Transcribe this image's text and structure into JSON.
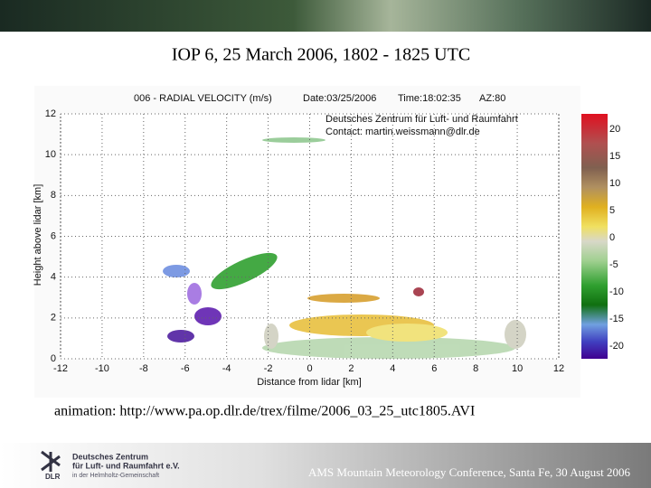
{
  "slide": {
    "title": "IOP 6, 25 March 2006, 1802 - 1825 UTC",
    "plot": {
      "header": [
        "006 - RADIAL VELOCITY (m/s)",
        "Date:03/25/2006",
        "Time:18:02:35",
        "AZ:80"
      ],
      "credit": [
        "Deutsches Zentrum für Luft- und Raumfahrt",
        "Contact: martin.weissmann@dlr.de"
      ],
      "x_label": "Distance from lidar [km]",
      "y_label": "Height above lidar [km]",
      "x_ticks": [
        -12,
        -10,
        -8,
        -6,
        -4,
        -2,
        0,
        2,
        4,
        6,
        8,
        10,
        12
      ],
      "y_ticks": [
        0,
        2,
        4,
        6,
        8,
        10,
        12
      ],
      "colorbar_ticks": [
        20,
        15,
        10,
        5,
        0,
        -5,
        -10,
        -15,
        -20
      ]
    },
    "caption": "animation: http://www.pa.op.dlr.de/trex/filme/2006_03_25_utc1805.AVI",
    "logo": {
      "mark": "DLR",
      "lines": [
        "Deutsches Zentrum",
        "für Luft- und Raumfahrt e.V.",
        "in der Helmholtz-Gemeinschaft"
      ]
    },
    "footer": "AMS Mountain Meteorology Conference, Santa Fe, 30 August 2006"
  }
}
